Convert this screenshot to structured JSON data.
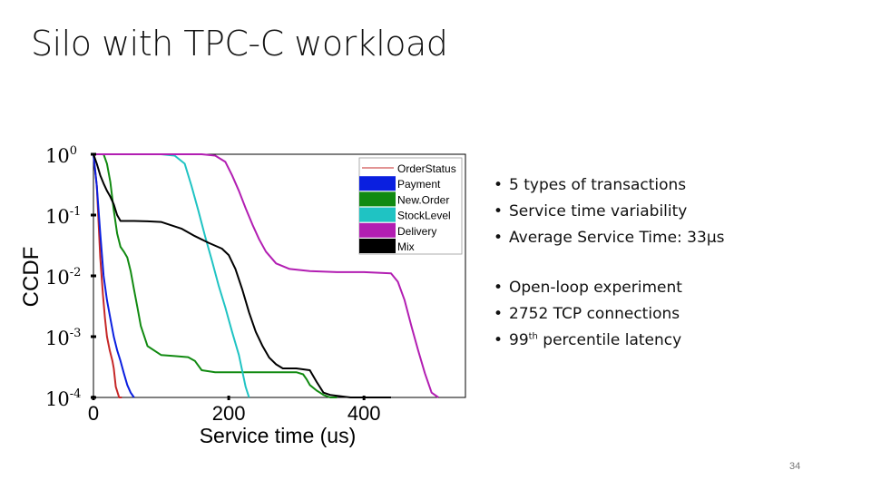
{
  "slide": {
    "title": "Silo with TPC-C workload",
    "page_number": "34",
    "bullets_group1": [
      "5 types of transactions",
      "Service time variability",
      "Average Service Time: 33µs"
    ],
    "bullets_group2": [
      "Open-loop experiment",
      "2752 TCP connections"
    ],
    "bullet_percentile": {
      "number": "99",
      "sup": "th",
      "rest": " percentile latency"
    }
  },
  "chart_data": {
    "type": "line",
    "xlabel": "Service time (us)",
    "ylabel": "CCDF",
    "xlim": [
      0,
      550
    ],
    "ylim": [
      0.0001,
      1
    ],
    "yscale": "log",
    "xticks": [
      "0",
      "200",
      "400"
    ],
    "yticks": [
      "10",
      "10",
      "10",
      "10",
      "10"
    ],
    "ytick_exponents": [
      "0",
      "-1",
      "-2",
      "-3",
      "-4"
    ],
    "legend_position": "top-right",
    "series": [
      {
        "name": "OrderStatus",
        "color": "#c62828",
        "x": [
          0,
          5,
          10,
          14,
          17,
          20,
          24,
          28,
          30,
          33,
          38,
          42
        ],
        "y": [
          1,
          0.3,
          0.02,
          0.005,
          0.002,
          0.001,
          0.0006,
          0.0004,
          0.0003,
          0.00015,
          0.0001,
          0.0001
        ]
      },
      {
        "name": "Payment",
        "color": "#0a1fe0",
        "x": [
          0,
          5,
          10,
          15,
          20,
          25,
          30,
          35,
          40,
          45,
          50,
          55,
          60
        ],
        "y": [
          1,
          0.3,
          0.05,
          0.01,
          0.004,
          0.002,
          0.001,
          0.0006,
          0.0004,
          0.00025,
          0.00016,
          0.00012,
          0.0001
        ]
      },
      {
        "name": "New.Order",
        "color": "#118a11",
        "x": [
          0,
          15,
          20,
          25,
          30,
          35,
          40,
          45,
          50,
          55,
          60,
          65,
          70,
          80,
          100,
          120,
          140,
          150,
          160,
          180,
          200,
          220,
          250,
          280,
          300,
          310,
          315,
          320,
          330,
          335,
          340,
          350,
          360
        ],
        "y": [
          1,
          1,
          0.7,
          0.35,
          0.12,
          0.05,
          0.03,
          0.025,
          0.02,
          0.012,
          0.006,
          0.003,
          0.0015,
          0.0007,
          0.0005,
          0.00048,
          0.00046,
          0.0004,
          0.00028,
          0.00026,
          0.00026,
          0.00026,
          0.00026,
          0.00026,
          0.00026,
          0.00024,
          0.0002,
          0.00016,
          0.00013,
          0.00012,
          0.00011,
          0.0001,
          0.0001
        ]
      },
      {
        "name": "StockLevel",
        "color": "#1fc3c3",
        "x": [
          0,
          100,
          120,
          135,
          145,
          155,
          165,
          175,
          185,
          195,
          205,
          215,
          225,
          230
        ],
        "y": [
          1,
          1,
          0.95,
          0.7,
          0.3,
          0.12,
          0.045,
          0.018,
          0.007,
          0.003,
          0.0012,
          0.0005,
          0.00015,
          0.0001
        ]
      },
      {
        "name": "Delivery",
        "color": "#b21eb2",
        "x": [
          0,
          160,
          180,
          195,
          205,
          215,
          225,
          235,
          245,
          255,
          270,
          290,
          320,
          360,
          400,
          440,
          450,
          460,
          470,
          480,
          490,
          500,
          510
        ],
        "y": [
          1,
          1,
          0.95,
          0.75,
          0.45,
          0.25,
          0.13,
          0.07,
          0.04,
          0.025,
          0.016,
          0.013,
          0.012,
          0.0115,
          0.0115,
          0.011,
          0.008,
          0.004,
          0.0015,
          0.0006,
          0.00025,
          0.00012,
          0.0001
        ]
      },
      {
        "name": "Mix",
        "color": "#000000",
        "x": [
          0,
          5,
          10,
          15,
          20,
          25,
          30,
          35,
          40,
          45,
          50,
          60,
          80,
          100,
          130,
          150,
          170,
          190,
          200,
          210,
          220,
          230,
          240,
          250,
          260,
          270,
          280,
          300,
          320,
          330,
          340,
          350,
          380,
          420,
          440
        ],
        "y": [
          1,
          0.7,
          0.45,
          0.33,
          0.25,
          0.2,
          0.15,
          0.1,
          0.08,
          0.08,
          0.08,
          0.08,
          0.079,
          0.077,
          0.06,
          0.045,
          0.035,
          0.028,
          0.022,
          0.013,
          0.006,
          0.0025,
          0.0012,
          0.0007,
          0.00045,
          0.00035,
          0.0003,
          0.0003,
          0.00028,
          0.00018,
          0.00012,
          0.00011,
          0.0001,
          0.0001,
          0.0001
        ]
      }
    ]
  }
}
